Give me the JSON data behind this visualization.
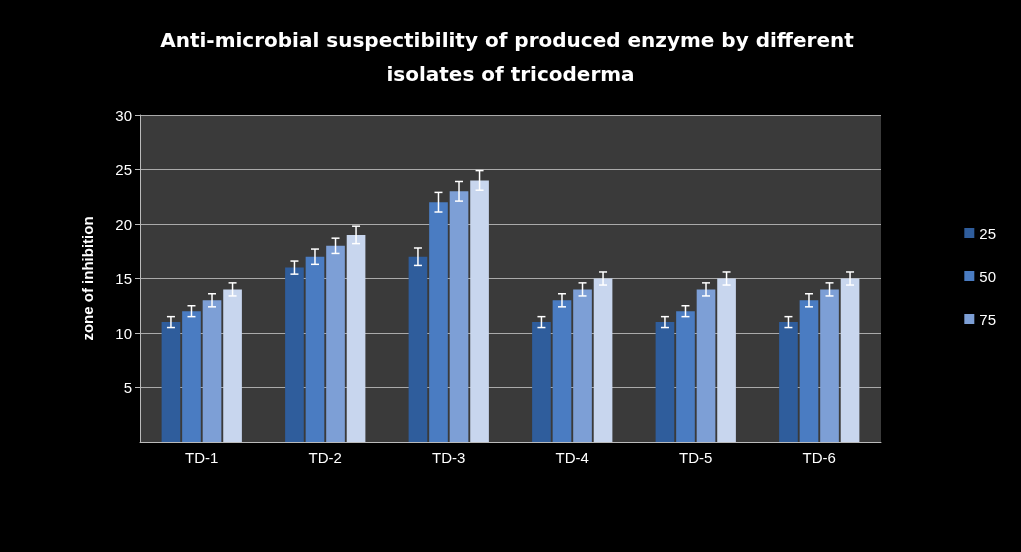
{
  "chart_data": {
    "type": "bar",
    "title": "Anti-microbial suspectibility of produced enzyme by different isolates of tricoderma",
    "ylabel": "zone of inhibition",
    "categories": [
      "TD-1",
      "TD-2",
      "TD-3",
      "TD-4",
      "TD-5",
      "TD-6"
    ],
    "series": [
      {
        "name": "25",
        "color": "#2f5d9c",
        "values": [
          11,
          16,
          17,
          11,
          11,
          11
        ],
        "errors": [
          0.5,
          0.6,
          0.8,
          0.5,
          0.5,
          0.5
        ]
      },
      {
        "name": "50",
        "color": "#4a7cc2",
        "values": [
          12,
          17,
          22,
          13,
          12,
          13
        ],
        "errors": [
          0.5,
          0.7,
          0.9,
          0.6,
          0.5,
          0.6
        ]
      },
      {
        "name": "75",
        "color": "#7d9fd6",
        "values": [
          13,
          18,
          23,
          14,
          14,
          14
        ],
        "errors": [
          0.6,
          0.7,
          0.9,
          0.6,
          0.6,
          0.6
        ]
      },
      {
        "color": "#c8d6ee",
        "values": [
          14,
          19,
          24,
          15,
          15,
          15
        ],
        "errors": [
          0.6,
          0.8,
          0.9,
          0.6,
          0.6,
          0.6
        ]
      }
    ],
    "ylim": [
      0,
      30
    ],
    "yticks": [
      5,
      10,
      15,
      20,
      25,
      30
    ],
    "grid": "y",
    "legend": "right"
  }
}
